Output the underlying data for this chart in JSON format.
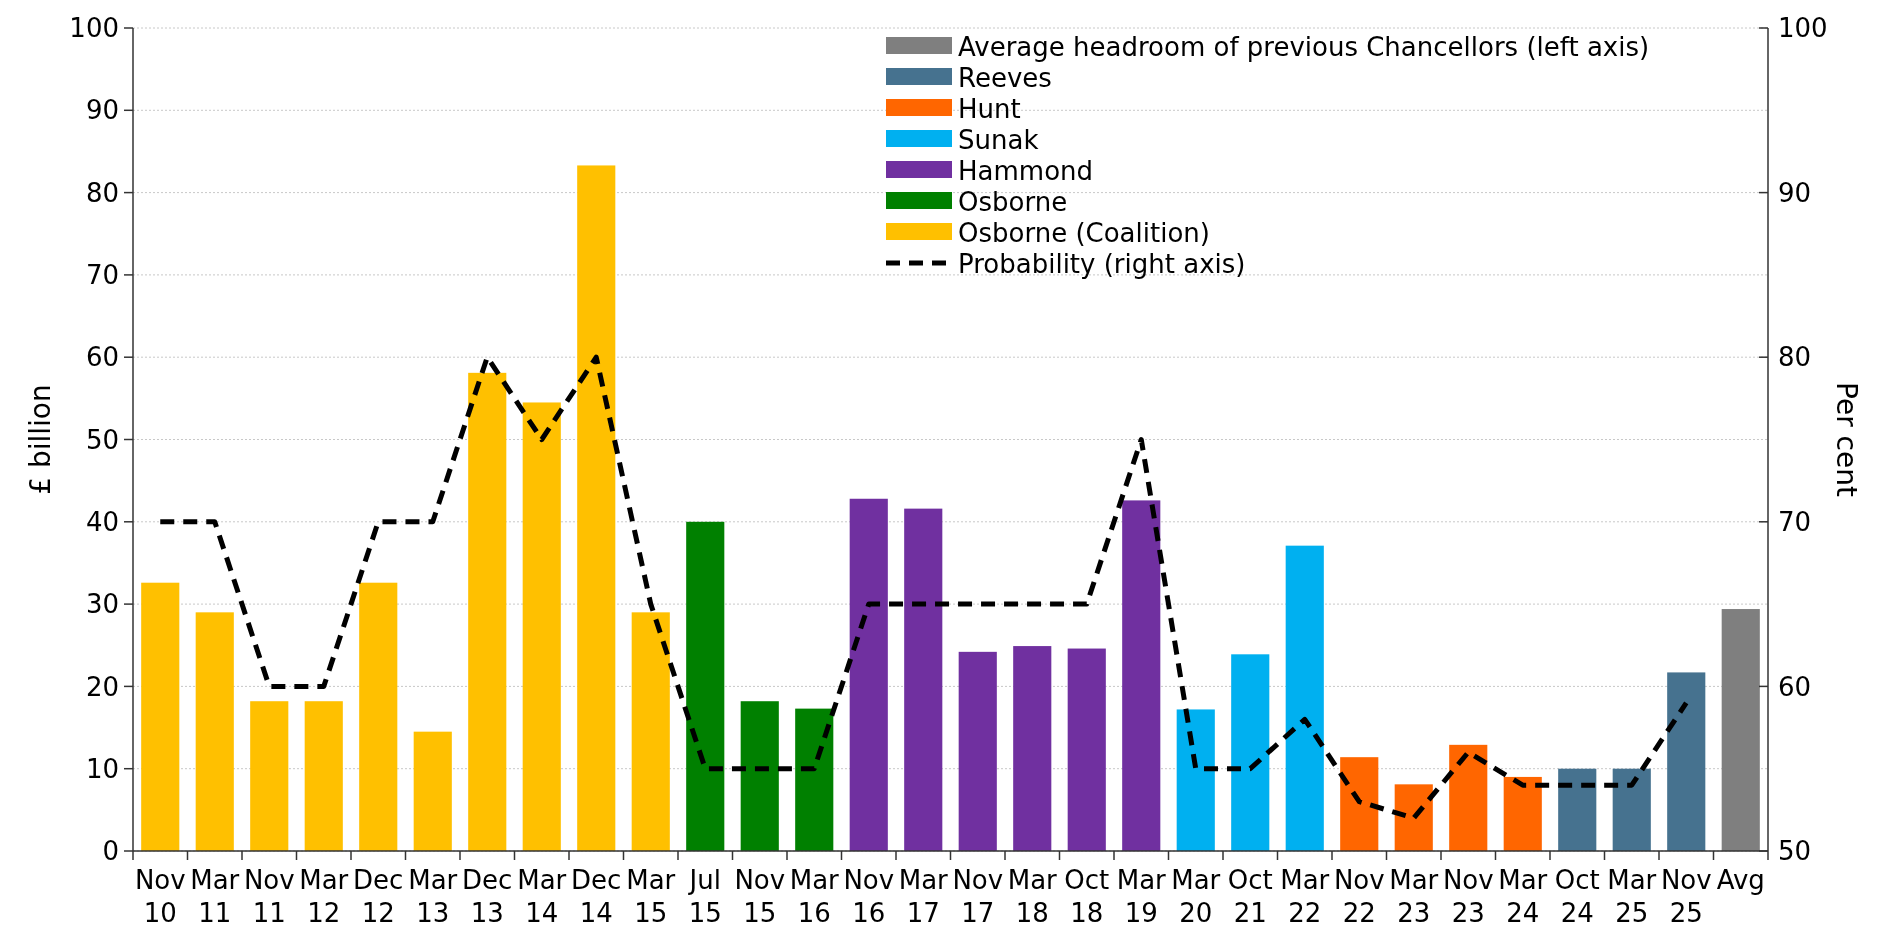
{
  "chart_data": {
    "type": "bar",
    "ylabel": "£ billion",
    "y2label": "Per cent",
    "categories": [
      "Nov 10",
      "Mar 11",
      "Nov 11",
      "Mar 12",
      "Dec 12",
      "Mar 13",
      "Dec 13",
      "Mar 14",
      "Dec 14",
      "Mar 15",
      "Jul 15",
      "Nov 15",
      "Mar 16",
      "Nov 16",
      "Mar 17",
      "Nov 17",
      "Mar 18",
      "Oct 18",
      "Mar 19",
      "Mar 20",
      "Oct 21",
      "Mar 22",
      "Nov 22",
      "Mar 23",
      "Nov 23",
      "Mar 24",
      "Oct 24",
      "Mar 25",
      "Nov 25",
      "Avg"
    ],
    "series": [
      {
        "name": "Average headroom of previous Chancellors (left axis)",
        "color": "#7f7f7f",
        "values": [
          null,
          null,
          null,
          null,
          null,
          null,
          null,
          null,
          null,
          null,
          null,
          null,
          null,
          null,
          null,
          null,
          null,
          null,
          null,
          null,
          null,
          null,
          null,
          null,
          null,
          null,
          null,
          null,
          null,
          29.4
        ]
      },
      {
        "name": "Reeves",
        "color": "#46728f",
        "values": [
          null,
          null,
          null,
          null,
          null,
          null,
          null,
          null,
          null,
          null,
          null,
          null,
          null,
          null,
          null,
          null,
          null,
          null,
          null,
          null,
          null,
          null,
          null,
          null,
          null,
          null,
          10,
          10,
          21.7,
          null
        ]
      },
      {
        "name": "Hunt",
        "color": "#ff6600",
        "values": [
          null,
          null,
          null,
          null,
          null,
          null,
          null,
          null,
          null,
          null,
          null,
          null,
          null,
          null,
          null,
          null,
          null,
          null,
          null,
          null,
          null,
          null,
          11.4,
          8.1,
          12.9,
          9,
          null,
          null,
          null,
          null
        ]
      },
      {
        "name": "Sunak",
        "color": "#00b0f0",
        "values": [
          null,
          null,
          null,
          null,
          null,
          null,
          null,
          null,
          null,
          null,
          null,
          null,
          null,
          null,
          null,
          null,
          null,
          null,
          null,
          17.2,
          23.9,
          37.1,
          null,
          null,
          null,
          null,
          null,
          null,
          null,
          null
        ]
      },
      {
        "name": "Hammond",
        "color": "#7030a0",
        "values": [
          null,
          null,
          null,
          null,
          null,
          null,
          null,
          null,
          null,
          null,
          null,
          null,
          null,
          42.8,
          41.6,
          24.2,
          24.9,
          24.6,
          42.6,
          null,
          null,
          null,
          null,
          null,
          null,
          null,
          null,
          null,
          null,
          null
        ]
      },
      {
        "name": "Osborne",
        "color": "#008000",
        "values": [
          null,
          null,
          null,
          null,
          null,
          null,
          null,
          null,
          null,
          null,
          40,
          18.2,
          17.3,
          null,
          null,
          null,
          null,
          null,
          null,
          null,
          null,
          null,
          null,
          null,
          null,
          null,
          null,
          null,
          null,
          null
        ]
      },
      {
        "name": "Osborne (Coalition)",
        "color": "#ffc000",
        "values": [
          32.6,
          29,
          18.2,
          18.2,
          32.6,
          14.5,
          58.1,
          54.5,
          83.3,
          29,
          null,
          null,
          null,
          null,
          null,
          null,
          null,
          null,
          null,
          null,
          null,
          null,
          null,
          null,
          null,
          null,
          null,
          null,
          null,
          null
        ]
      },
      {
        "name": "Probability (right axis)",
        "type": "line",
        "axis": "y2",
        "color": "#000000",
        "line_style": "dashed",
        "values": [
          70,
          70,
          60,
          60,
          70,
          70,
          80,
          75,
          80,
          65,
          55,
          55,
          55,
          65,
          65,
          65,
          65,
          65,
          75,
          55,
          55,
          58,
          53,
          52,
          56,
          54,
          54,
          54,
          59,
          null
        ]
      }
    ],
    "ylim": [
      0,
      100
    ],
    "yticks": [
      0,
      10,
      20,
      30,
      40,
      50,
      60,
      70,
      80,
      90,
      100
    ],
    "y2lim": [
      50,
      100
    ],
    "y2ticks": [
      50,
      60,
      70,
      80,
      90,
      100
    ],
    "grid": "y",
    "legend": "top right"
  }
}
